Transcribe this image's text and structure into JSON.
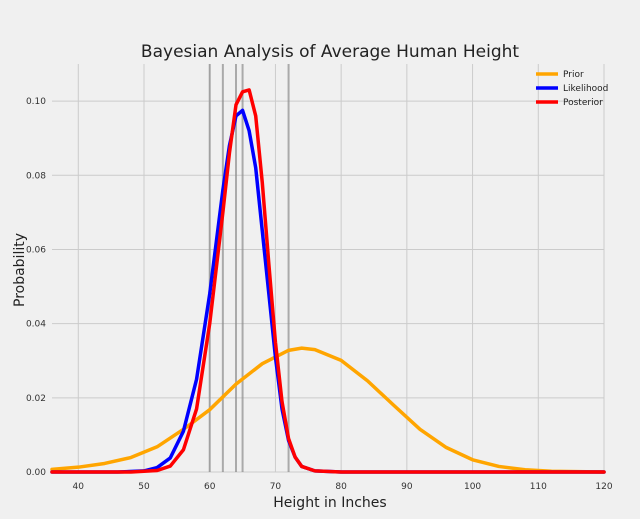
{
  "chart_data": {
    "type": "line",
    "title": "Bayesian Analysis of Average Human Height",
    "xlabel": "Height in Inches",
    "ylabel": "Probability",
    "xlim": [
      36,
      120
    ],
    "ylim": [
      0,
      0.11
    ],
    "x_ticks": [
      40,
      50,
      60,
      70,
      80,
      90,
      100,
      110,
      120
    ],
    "x_tick_labels": [
      "40",
      "50",
      "60",
      "70",
      "80",
      "90",
      "100",
      "110",
      "120"
    ],
    "y_ticks": [
      0.0,
      0.02,
      0.04,
      0.06,
      0.08,
      0.1
    ],
    "y_tick_labels": [
      "0.00",
      "0.02",
      "0.04",
      "0.06",
      "0.08",
      "0.10"
    ],
    "grid": true,
    "legend_position": "top-right",
    "observations": [
      60,
      62,
      64,
      65,
      72
    ],
    "series": [
      {
        "name": "Prior",
        "color": "#ffa500",
        "points": [
          [
            36,
            0.0007
          ],
          [
            40,
            0.0013
          ],
          [
            44,
            0.0023
          ],
          [
            48,
            0.0039
          ],
          [
            52,
            0.0068
          ],
          [
            56,
            0.0115
          ],
          [
            60,
            0.0168
          ],
          [
            64,
            0.0237
          ],
          [
            68,
            0.0292
          ],
          [
            72,
            0.0328
          ],
          [
            74,
            0.0334
          ],
          [
            76,
            0.033
          ],
          [
            80,
            0.0301
          ],
          [
            84,
            0.0246
          ],
          [
            88,
            0.018
          ],
          [
            92,
            0.0115
          ],
          [
            96,
            0.0066
          ],
          [
            100,
            0.0033
          ],
          [
            104,
            0.0015
          ],
          [
            108,
            0.0006
          ],
          [
            112,
            0.0002
          ],
          [
            116,
            0.0001
          ],
          [
            120,
            0.0
          ]
        ]
      },
      {
        "name": "Likelihood",
        "color": "#0000ff",
        "points": [
          [
            36,
            0.0
          ],
          [
            46,
            0.0
          ],
          [
            50,
            0.0003
          ],
          [
            52,
            0.0012
          ],
          [
            54,
            0.0038
          ],
          [
            56,
            0.011
          ],
          [
            58,
            0.025
          ],
          [
            60,
            0.048
          ],
          [
            62,
            0.076
          ],
          [
            63,
            0.088
          ],
          [
            64,
            0.096
          ],
          [
            65,
            0.0975
          ],
          [
            66,
            0.092
          ],
          [
            67,
            0.082
          ],
          [
            68,
            0.065
          ],
          [
            69,
            0.048
          ],
          [
            70,
            0.031
          ],
          [
            71,
            0.017
          ],
          [
            72,
            0.0085
          ],
          [
            73,
            0.004
          ],
          [
            74,
            0.0015
          ],
          [
            76,
            0.0003
          ],
          [
            80,
            0.0
          ],
          [
            120,
            0.0
          ]
        ]
      },
      {
        "name": "Posterior",
        "color": "#ff0000",
        "points": [
          [
            36,
            0.0
          ],
          [
            48,
            0.0
          ],
          [
            52,
            0.0004
          ],
          [
            54,
            0.0016
          ],
          [
            56,
            0.006
          ],
          [
            58,
            0.017
          ],
          [
            60,
            0.04
          ],
          [
            62,
            0.07
          ],
          [
            63,
            0.086
          ],
          [
            64,
            0.099
          ],
          [
            65,
            0.1025
          ],
          [
            66,
            0.103
          ],
          [
            67,
            0.096
          ],
          [
            68,
            0.078
          ],
          [
            69,
            0.056
          ],
          [
            70,
            0.035
          ],
          [
            71,
            0.019
          ],
          [
            72,
            0.009
          ],
          [
            73,
            0.004
          ],
          [
            74,
            0.0015
          ],
          [
            76,
            0.0003
          ],
          [
            80,
            0.0
          ],
          [
            120,
            0.0
          ]
        ]
      }
    ]
  }
}
